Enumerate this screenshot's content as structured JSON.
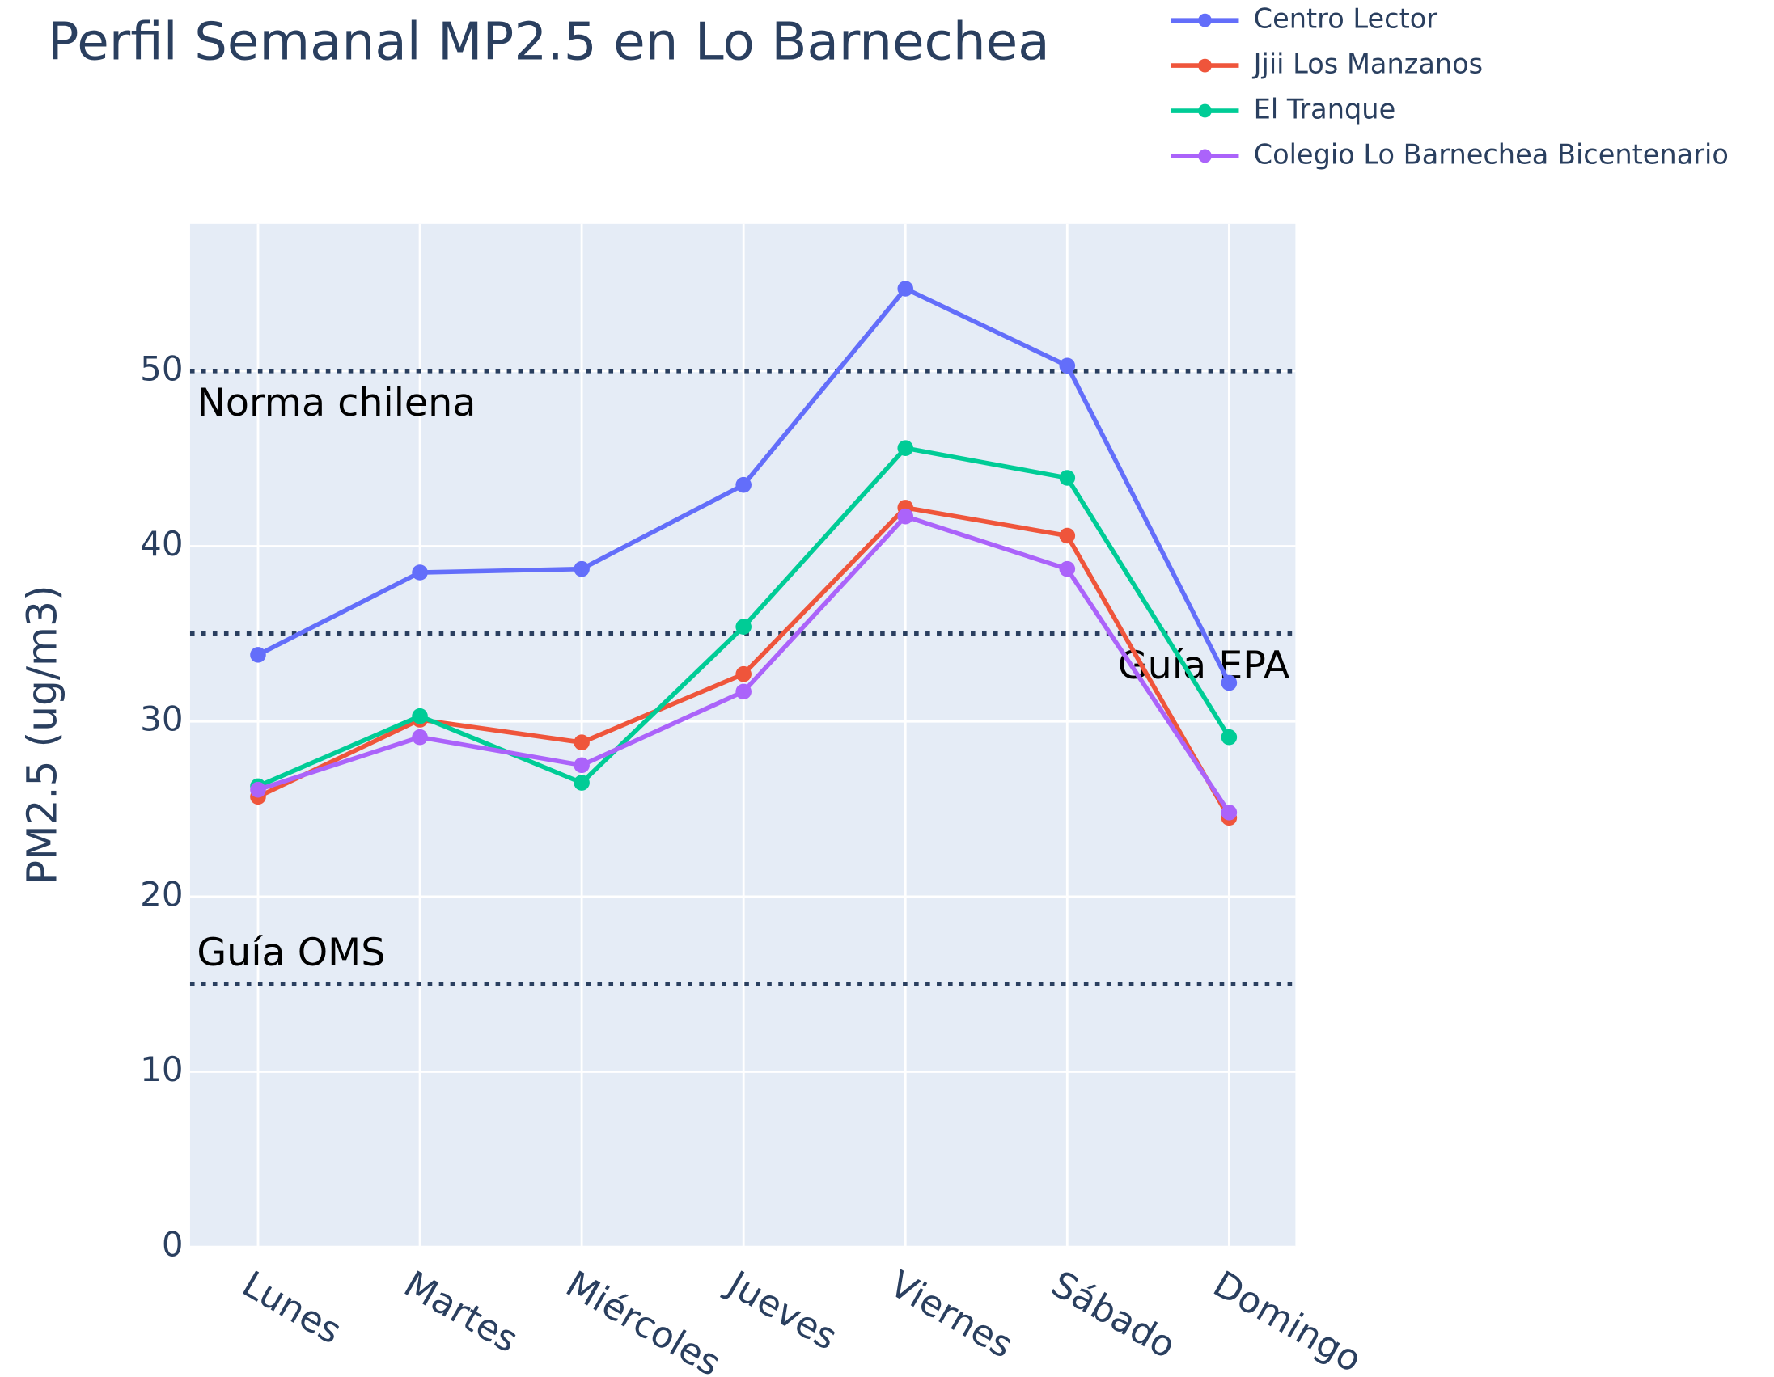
{
  "chart_data": {
    "type": "line",
    "title": "Perfil Semanal MP2.5 en Lo Barnechea",
    "ylabel": "PM2.5 (ug/m3)",
    "categories": [
      "Lunes",
      "Martes",
      "Miércoles",
      "Jueves",
      "Viernes",
      "Sábado",
      "Domingo"
    ],
    "series": [
      {
        "name": "Centro Lector",
        "color": "#636efa",
        "values": [
          33.8,
          38.5,
          38.7,
          43.5,
          54.7,
          50.3,
          32.2
        ]
      },
      {
        "name": "Jjii Los Manzanos",
        "color": "#ef553b",
        "values": [
          25.7,
          30.1,
          28.8,
          32.7,
          42.2,
          40.6,
          24.5
        ]
      },
      {
        "name": "El Tranque",
        "color": "#00cc96",
        "values": [
          26.3,
          30.3,
          26.5,
          35.4,
          45.6,
          43.9,
          29.1
        ]
      },
      {
        "name": "Colegio Lo Barnechea Bicentenario",
        "color": "#ab63fa",
        "values": [
          26.1,
          29.1,
          27.5,
          31.7,
          41.7,
          38.7,
          24.8
        ]
      }
    ],
    "ylim": [
      0,
      58.4
    ],
    "yticks": [
      0,
      10,
      20,
      30,
      40,
      50
    ],
    "grid": true,
    "legend": "top-right",
    "reference_lines": [
      {
        "value": 50,
        "label": "Norma chilena",
        "position": "left-below"
      },
      {
        "value": 35,
        "label": "Guía EPA",
        "position": "right-below"
      },
      {
        "value": 15,
        "label": "Guía OMS",
        "position": "left-above"
      }
    ]
  }
}
